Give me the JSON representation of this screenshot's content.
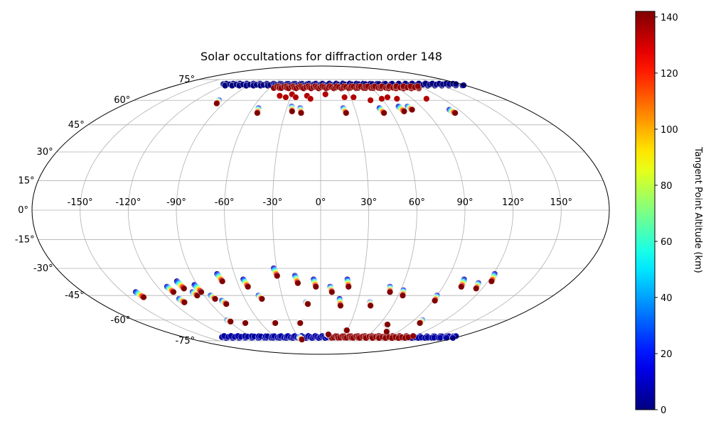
{
  "chart_data": {
    "type": "scatter",
    "projection": "mollweide",
    "title": "Solar occultations for diffraction order 148",
    "xlabel": "",
    "ylabel": "",
    "grid": true,
    "lon_ticks": [
      -150,
      -120,
      -90,
      -60,
      -30,
      0,
      30,
      60,
      90,
      120,
      150
    ],
    "lon_tick_labels": [
      "-150°",
      "-120°",
      "-90°",
      "-60°",
      "-30°",
      "0°",
      "30°",
      "60°",
      "90°",
      "120°",
      "150°"
    ],
    "lat_ticks": [
      -75,
      -60,
      -45,
      -30,
      -15,
      0,
      15,
      30,
      45,
      60,
      75
    ],
    "lat_tick_labels": [
      "-75°",
      "-60°",
      "-45°",
      "-30°",
      "-15°",
      "0°",
      "15°",
      "30°",
      "45°",
      "60°",
      "75°"
    ],
    "xlim": [
      -180,
      180
    ],
    "ylim": [
      -90,
      90
    ],
    "colorbar": {
      "label": "Tangent Point Altitude (km)",
      "colormap": "jet",
      "range": [
        0,
        142
      ],
      "ticks": [
        0,
        20,
        40,
        60,
        80,
        100,
        120,
        140
      ],
      "tick_labels": [
        "0",
        "20",
        "40",
        "60",
        "80",
        "100",
        "120",
        "140"
      ]
    },
    "occultation_tracks": [
      {
        "lon": -140,
        "lat_start": -43,
        "lat_end": -46
      },
      {
        "lon": -113,
        "lat_start": -40,
        "lat_end": -43
      },
      {
        "lon": -112,
        "lat_start": -47,
        "lat_end": -49
      },
      {
        "lon": -103,
        "lat_start": -37,
        "lat_end": -41
      },
      {
        "lon": -97,
        "lat_start": -43,
        "lat_end": -45
      },
      {
        "lon": -92,
        "lat_start": -39,
        "lat_end": -43
      },
      {
        "lon": -90,
        "lat_start": -60,
        "lat_end": -61
      },
      {
        "lon": -85,
        "lat_start": -45,
        "lat_end": -47
      },
      {
        "lon": -79,
        "lat_start": -48,
        "lat_end": -50
      },
      {
        "lon": -77,
        "lat_start": -62,
        "lat_end": -62
      },
      {
        "lon": -72,
        "lat_start": -33,
        "lat_end": -37
      },
      {
        "lon": -55,
        "lat_start": -36,
        "lat_end": -40
      },
      {
        "lon": -48,
        "lat_start": -45,
        "lat_end": -47
      },
      {
        "lon": -47,
        "lat_start": -62,
        "lat_end": -62
      },
      {
        "lon": -32,
        "lat_start": -30,
        "lat_end": -34
      },
      {
        "lon": -28,
        "lat_start": -72,
        "lat_end": -74
      },
      {
        "lon": -22,
        "lat_start": -62,
        "lat_end": -62
      },
      {
        "lon": -18,
        "lat_start": -34,
        "lat_end": -38
      },
      {
        "lon": -12,
        "lat_start": -49,
        "lat_end": -50
      },
      {
        "lon": -5,
        "lat_start": -36,
        "lat_end": -40
      },
      {
        "lon": 7,
        "lat_start": -40,
        "lat_end": -43
      },
      {
        "lon": 8,
        "lat_start": -70,
        "lat_end": -70
      },
      {
        "lon": 15,
        "lat_start": -47,
        "lat_end": -51
      },
      {
        "lon": 19,
        "lat_start": -36,
        "lat_end": -40
      },
      {
        "lon": 28,
        "lat_start": -67,
        "lat_end": -67
      },
      {
        "lon": 40,
        "lat_start": -49,
        "lat_end": -51
      },
      {
        "lon": 51,
        "lat_start": -40,
        "lat_end": -43
      },
      {
        "lon": 62,
        "lat_start": -42,
        "lat_end": -45
      },
      {
        "lon": 67,
        "lat_start": -63,
        "lat_end": -63
      },
      {
        "lon": 75,
        "lat_start": -67,
        "lat_end": -68
      },
      {
        "lon": 90,
        "lat_start": -45,
        "lat_end": -48
      },
      {
        "lon": 98,
        "lat_start": -60,
        "lat_end": -62
      },
      {
        "lon": 102,
        "lat_start": -36,
        "lat_end": -40
      },
      {
        "lon": 114,
        "lat_start": -38,
        "lat_end": -41
      },
      {
        "lon": 121,
        "lat_start": -33,
        "lat_end": -37
      },
      {
        "lon": -98,
        "lat_start": 60,
        "lat_end": 58
      },
      {
        "lon": -55,
        "lat_start": 55,
        "lat_end": 52
      },
      {
        "lon": -26,
        "lat_start": 56,
        "lat_end": 53
      },
      {
        "lon": -18,
        "lat_start": 55,
        "lat_end": 52
      },
      {
        "lon": 20,
        "lat_start": 55,
        "lat_end": 52
      },
      {
        "lon": 52,
        "lat_start": 55,
        "lat_end": 52
      },
      {
        "lon": 70,
        "lat_start": 56,
        "lat_end": 53
      },
      {
        "lon": 78,
        "lat_start": 56,
        "lat_end": 54
      },
      {
        "lon": 112,
        "lat_start": 54,
        "lat_end": 52
      }
    ],
    "polar_bands": [
      {
        "lat": 71,
        "lon_start": -125,
        "lon_end": 180,
        "altitude_km": 0
      },
      {
        "lat": 69,
        "lon_start": -55,
        "lon_end": 120,
        "altitude_km": 140
      },
      {
        "lat": -72,
        "lon_start": -130,
        "lon_end": 180,
        "altitude_km": 5
      },
      {
        "lat": -72,
        "lon_start": 15,
        "lon_end": 120,
        "altitude_km": 140
      }
    ],
    "high_altitude_points": [
      {
        "lon": -30,
        "lat": 64
      },
      {
        "lon": -25,
        "lat": 62
      },
      {
        "lon": -42,
        "lat": 63
      },
      {
        "lon": -35,
        "lat": 62
      },
      {
        "lon": -14,
        "lat": 63
      },
      {
        "lon": -10,
        "lat": 61
      },
      {
        "lon": 24,
        "lat": 62
      },
      {
        "lon": 33,
        "lat": 62
      },
      {
        "lon": 48,
        "lat": 60
      },
      {
        "lon": 60,
        "lat": 61
      },
      {
        "lon": 67,
        "lat": 62
      },
      {
        "lon": 75,
        "lat": 61
      },
      {
        "lon": 104,
        "lat": 61
      },
      {
        "lon": 5,
        "lat": 64
      }
    ]
  }
}
